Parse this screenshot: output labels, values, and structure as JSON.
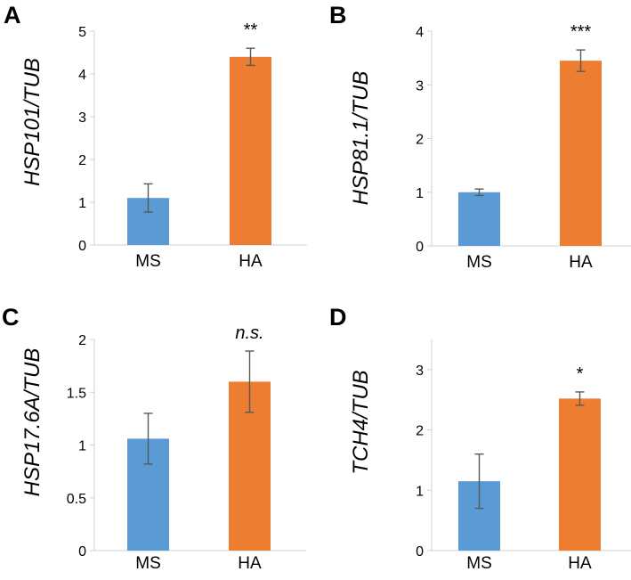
{
  "chart_data": [
    {
      "panel": "A",
      "type": "bar",
      "ylabel": "HSP101/TUB",
      "categories": [
        "MS",
        "HA"
      ],
      "values": [
        1.1,
        4.4
      ],
      "errors": [
        0.33,
        0.2
      ],
      "colors": [
        "#5b9bd5",
        "#ed7d31"
      ],
      "ylim": [
        0,
        5
      ],
      "yticks": [
        0,
        1,
        2,
        3,
        4,
        5
      ],
      "yticklabels": [
        "0",
        "1",
        "2",
        "3",
        "4",
        "5"
      ],
      "significance": "**",
      "sig_italic": false
    },
    {
      "panel": "B",
      "type": "bar",
      "ylabel": "HSP81.1/TUB",
      "categories": [
        "MS",
        "HA"
      ],
      "values": [
        1.0,
        3.45
      ],
      "errors": [
        0.06,
        0.2
      ],
      "colors": [
        "#5b9bd5",
        "#ed7d31"
      ],
      "ylim": [
        0,
        4
      ],
      "yticks": [
        0,
        1,
        2,
        3,
        4
      ],
      "yticklabels": [
        "0",
        "1",
        "2",
        "3",
        "4"
      ],
      "significance": "***",
      "sig_italic": false
    },
    {
      "panel": "C",
      "type": "bar",
      "ylabel": "HSP17.6A/TUB",
      "categories": [
        "MS",
        "HA"
      ],
      "values": [
        1.06,
        1.6
      ],
      "errors": [
        0.24,
        0.29
      ],
      "colors": [
        "#5b9bd5",
        "#ed7d31"
      ],
      "ylim": [
        0,
        2
      ],
      "yticks": [
        0,
        0.5,
        1,
        1.5,
        2
      ],
      "yticklabels": [
        "0",
        "0.5",
        "1",
        "1.5",
        "2"
      ],
      "significance": "n.s.",
      "sig_italic": true
    },
    {
      "panel": "D",
      "type": "bar",
      "ylabel": "TCH4/TUB",
      "categories": [
        "MS",
        "HA"
      ],
      "values": [
        1.15,
        2.52
      ],
      "errors": [
        0.45,
        0.11
      ],
      "colors": [
        "#5b9bd5",
        "#ed7d31"
      ],
      "ylim": [
        0,
        3.5
      ],
      "yticks": [
        0,
        1,
        2,
        3
      ],
      "yticklabels": [
        "0",
        "1",
        "2",
        "3"
      ],
      "significance": "*",
      "sig_italic": false
    }
  ]
}
